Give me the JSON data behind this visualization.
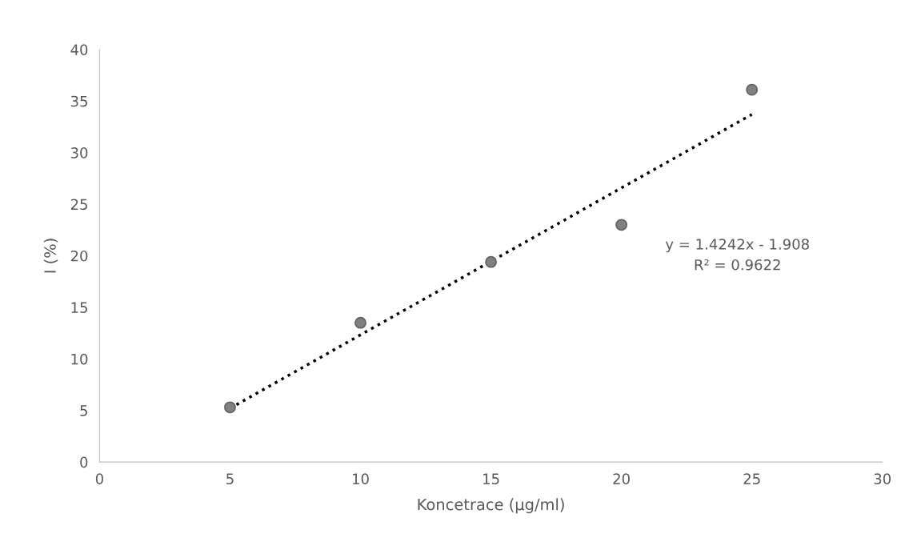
{
  "chart_data": {
    "type": "scatter",
    "xlabel": "Koncetrace (μg/ml)",
    "ylabel": "I (%)",
    "xlim": [
      0,
      30
    ],
    "xticks": [
      0,
      5,
      10,
      15,
      20,
      25,
      30
    ],
    "ylim": [
      0,
      40
    ],
    "yticks": [
      0,
      5,
      10,
      15,
      20,
      25,
      30,
      35,
      40
    ],
    "grid": false,
    "legend": false,
    "marker": "circle",
    "series": [
      {
        "color": "#808080",
        "x": [
          5,
          10,
          15,
          20,
          25
        ],
        "values": [
          5.3,
          13.5,
          19.4,
          23.0,
          36.1
        ]
      },
      {
        "type": "line",
        "color": "#000000",
        "line_style": "dotted",
        "marker": "none",
        "x": [
          5,
          25
        ],
        "values": [
          5.2,
          33.7
        ]
      }
    ],
    "annotations": [
      "y = 1.4242x - 1.908\nR² = 0.9622"
    ]
  }
}
